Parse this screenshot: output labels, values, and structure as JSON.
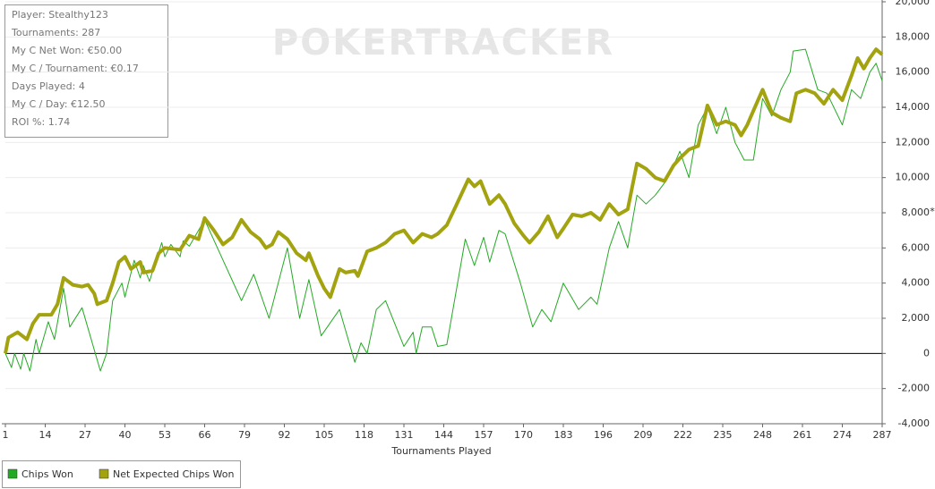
{
  "chart_data": {
    "type": "line",
    "watermark": "POKERTRACKER",
    "stats": [
      "Player: Stealthy123",
      "Tournaments: 287",
      "My C Net Won: €50.00",
      "My C / Tournament: €0.17",
      "Days Played: 4",
      "My C / Day: €12.50",
      "ROI %: 1.74"
    ],
    "x_label": "Tournaments Played",
    "y_label": "*",
    "xlim": [
      1,
      287
    ],
    "xticks": [
      1,
      14,
      27,
      40,
      53,
      66,
      79,
      92,
      105,
      118,
      131,
      144,
      157,
      170,
      183,
      196,
      209,
      222,
      235,
      248,
      261,
      274,
      287
    ],
    "ylim": [
      -4000,
      20000
    ],
    "yticks": [
      {
        "value": -4000,
        "label": "-4,000"
      },
      {
        "value": -2000,
        "label": "-2,000"
      },
      0,
      {
        "value": 2000,
        "label": "2,000"
      },
      {
        "value": 4000,
        "label": "4,000"
      },
      {
        "value": 6000,
        "label": "6,000"
      },
      {
        "value": 8000,
        "label": "8,000"
      },
      {
        "value": 10000,
        "label": "10,000"
      },
      {
        "value": 12000,
        "label": "12,000"
      },
      {
        "value": 14000,
        "label": "14,000"
      },
      {
        "value": 16000,
        "label": "16,000"
      },
      {
        "value": 18000,
        "label": "18,000"
      },
      {
        "value": 20000,
        "label": "20,000"
      }
    ],
    "grid": true,
    "series": [
      {
        "name": "Chips Won",
        "color": "#22aa22",
        "width": 1,
        "x": [
          1,
          3,
          4,
          6,
          7,
          9,
          11,
          12,
          15,
          17,
          20,
          22,
          26,
          32,
          34,
          36,
          39,
          40,
          43,
          45,
          46,
          48,
          52,
          53,
          55,
          58,
          59,
          61,
          66,
          78,
          82,
          87,
          93,
          97,
          100,
          104,
          110,
          115,
          117,
          119,
          122,
          125,
          131,
          134,
          135,
          137,
          140,
          142,
          145,
          151,
          154,
          157,
          159,
          162,
          164,
          169,
          173,
          176,
          179,
          183,
          188,
          192,
          194,
          198,
          201,
          204,
          207,
          210,
          213,
          216,
          219,
          221,
          224,
          227,
          230,
          233,
          236,
          239,
          242,
          245,
          248,
          251,
          254,
          257,
          258,
          262,
          266,
          269,
          274,
          277,
          280,
          283,
          285,
          287
        ],
        "values": [
          0,
          -800,
          0,
          -900,
          0,
          -1000,
          800,
          0,
          1800,
          800,
          3700,
          1500,
          2600,
          -1000,
          0,
          3000,
          4000,
          3200,
          5300,
          4300,
          5000,
          4100,
          6300,
          5500,
          6200,
          5500,
          6400,
          6100,
          7600,
          3000,
          4500,
          2000,
          6000,
          2000,
          4200,
          1000,
          2500,
          -500,
          600,
          0,
          2500,
          3000,
          400,
          1200,
          0,
          1500,
          1500,
          400,
          500,
          6500,
          5000,
          6600,
          5200,
          7000,
          6800,
          4000,
          1500,
          2500,
          1800,
          4000,
          2500,
          3200,
          2800,
          6000,
          7500,
          6000,
          9000,
          8500,
          9000,
          9700,
          10700,
          11500,
          10000,
          13000,
          14000,
          12500,
          14000,
          12000,
          11000,
          11000,
          14500,
          13500,
          15000,
          16000,
          17200,
          17300,
          15000,
          14800,
          13000,
          15000,
          14500,
          16000,
          16500,
          15500
        ]
      },
      {
        "name": "Net Expected Chips Won",
        "color": "#a3a310",
        "width": 4,
        "x": [
          1,
          2,
          5,
          8,
          10,
          12,
          16,
          18,
          20,
          23,
          26,
          28,
          30,
          31,
          34,
          36,
          38,
          40,
          42,
          45,
          46,
          49,
          51,
          53,
          58,
          61,
          64,
          66,
          69,
          72,
          75,
          78,
          81,
          84,
          86,
          88,
          90,
          93,
          96,
          99,
          100,
          103,
          105,
          107,
          110,
          112,
          115,
          116,
          119,
          122,
          125,
          128,
          131,
          134,
          137,
          140,
          142,
          145,
          148,
          152,
          154,
          156,
          159,
          162,
          164,
          167,
          170,
          172,
          175,
          178,
          181,
          183,
          186,
          189,
          192,
          195,
          198,
          201,
          204,
          207,
          210,
          213,
          216,
          219,
          221,
          224,
          227,
          230,
          233,
          236,
          239,
          241,
          243,
          245,
          248,
          251,
          254,
          257,
          259,
          262,
          265,
          268,
          271,
          274,
          277,
          279,
          281,
          283,
          285,
          287
        ],
        "values": [
          0,
          900,
          1200,
          800,
          1700,
          2200,
          2200,
          2800,
          4300,
          3900,
          3800,
          3900,
          3400,
          2800,
          3000,
          4000,
          5200,
          5500,
          4800,
          5200,
          4600,
          4700,
          5700,
          6000,
          5900,
          6700,
          6500,
          7700,
          7000,
          6200,
          6600,
          7600,
          6900,
          6500,
          6000,
          6200,
          6900,
          6500,
          5700,
          5300,
          5700,
          4400,
          3700,
          3200,
          4800,
          4600,
          4700,
          4400,
          5800,
          6000,
          6300,
          6800,
          7000,
          6300,
          6800,
          6600,
          6800,
          7300,
          8400,
          9900,
          9500,
          9800,
          8500,
          9000,
          8500,
          7400,
          6700,
          6300,
          6900,
          7800,
          6600,
          7100,
          7900,
          7800,
          8000,
          7600,
          8500,
          7900,
          8200,
          10800,
          10500,
          10000,
          9800,
          10700,
          11100,
          11600,
          11800,
          14100,
          13000,
          13200,
          13000,
          12400,
          13000,
          13800,
          15000,
          13700,
          13400,
          13200,
          14800,
          15000,
          14800,
          14200,
          15000,
          14400,
          15800,
          16800,
          16200,
          16800,
          17300,
          17000
        ]
      }
    ]
  }
}
